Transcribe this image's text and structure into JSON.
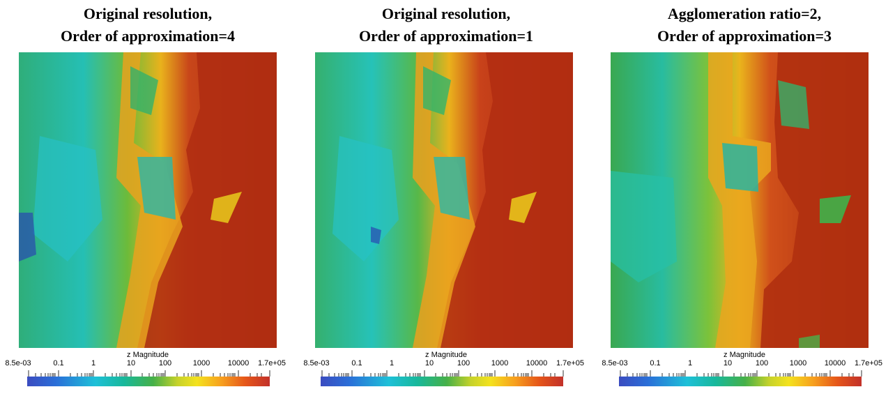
{
  "panels": [
    {
      "title_line1": "Original resolution,",
      "title_line2": "Order of approximation=4",
      "colorbar_title": "z Magnitude",
      "tick_labels": [
        "8.5e-03",
        "0.1",
        "1",
        "10",
        "100",
        "1000",
        "10000",
        "1.7e+05"
      ]
    },
    {
      "title_line1": "Original resolution,",
      "title_line2": "Order of approximation=1",
      "colorbar_title": "z Magnitude",
      "tick_labels": [
        "8.5e-03",
        "0.1",
        "1",
        "10",
        "100",
        "1000",
        "10000",
        "1.7e+05"
      ]
    },
    {
      "title_line1": "Agglomeration ratio=2,",
      "title_line2": "Order of approximation=3",
      "colorbar_title": "z Magnitude",
      "tick_labels": [
        "8.5e-03",
        "0.1",
        "1",
        "10",
        "100",
        "1000",
        "10000",
        "1.7e+05"
      ]
    }
  ],
  "colors": {
    "low": "#2a3fb0",
    "cyan": "#1fc4cc",
    "green": "#3aa64a",
    "yellow": "#e8d61e",
    "orange": "#f08a1e",
    "high": "#a8280e"
  }
}
